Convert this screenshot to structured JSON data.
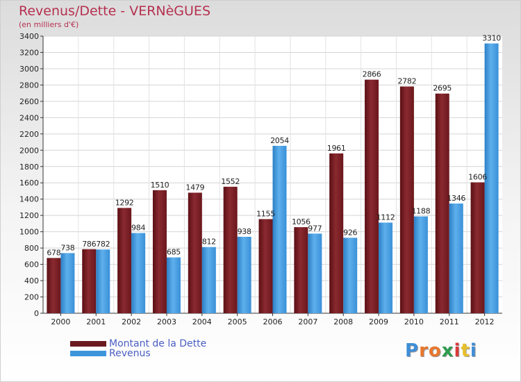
{
  "chart_data": {
    "type": "bar",
    "title": "Revenus/Dette - VERNèGUES",
    "subtitle": "(en milliers d'€)",
    "categories": [
      "2000",
      "2001",
      "2002",
      "2003",
      "2004",
      "2005",
      "2006",
      "2007",
      "2008",
      "2009",
      "2010",
      "2011",
      "2012"
    ],
    "series": [
      {
        "name": "Montant de la Dette",
        "color": "#7a1f24",
        "values": [
          678,
          786,
          1292,
          1510,
          1479,
          1552,
          1155,
          1056,
          1961,
          2866,
          2782,
          2695,
          1606
        ]
      },
      {
        "name": "Revenus",
        "color": "#3d96dc",
        "values": [
          738,
          782,
          984,
          685,
          812,
          938,
          2054,
          977,
          926,
          1112,
          1188,
          1346,
          3310
        ]
      }
    ],
    "ylim": [
      0,
      3400
    ],
    "yticks": [
      0,
      200,
      400,
      600,
      800,
      1000,
      1200,
      1400,
      1600,
      1800,
      2000,
      2200,
      2400,
      2600,
      2800,
      3000,
      3200,
      3400
    ],
    "xlabel": "",
    "ylabel": "",
    "grid": true,
    "legend": "bottom-left"
  },
  "logo": {
    "letters": [
      "P",
      "r",
      "o",
      "x",
      "i",
      "t",
      "i"
    ],
    "colors": [
      "#3f8ed6",
      "#e8772e",
      "#e8772e",
      "#2e9c4f",
      "#d93a3a",
      "#e8c02a",
      "#3f8ed6"
    ]
  }
}
